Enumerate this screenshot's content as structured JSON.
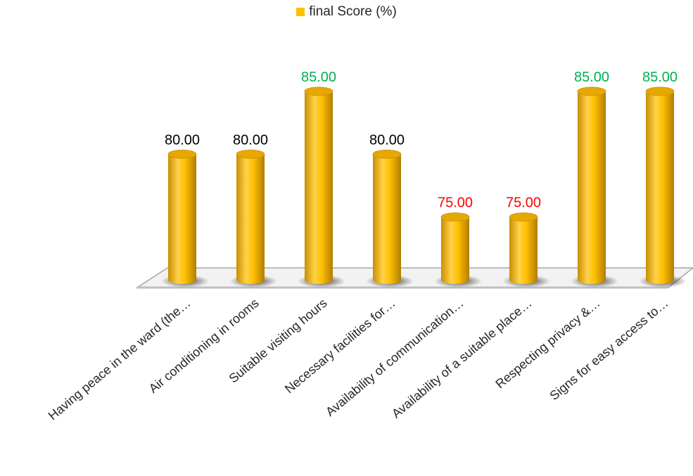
{
  "chart_data": {
    "type": "bar",
    "style": "3d-cylinder",
    "categories": [
      "Having peace in the ward (the…",
      "Air conditioning in rooms",
      "Suitable visiting hours",
      "Necessary facilities for…",
      "Availability of communication…",
      "Availability of a suitable place…",
      "Respecting privacy &…",
      "Signs for easy access to…"
    ],
    "series": [
      {
        "name": "final Score (%)",
        "values": [
          80.0,
          80.0,
          85.0,
          80.0,
          75.0,
          75.0,
          85.0,
          85.0
        ]
      }
    ],
    "data_labels": [
      "80.00",
      "80.00",
      "85.00",
      "80.00",
      "75.00",
      "75.00",
      "85.00",
      "85.00"
    ],
    "data_label_colors": [
      "#000000",
      "#000000",
      "#00B050",
      "#000000",
      "#FF0000",
      "#FF0000",
      "#00B050",
      "#00B050"
    ],
    "ylim": [
      70,
      86
    ],
    "grid": false,
    "legend_position": "top"
  },
  "colors": {
    "bar_fill": "#FFC000",
    "bar_shade": "#E6A800",
    "floor_fill": "#F2F2F2",
    "floor_stroke": "#A6A6A6",
    "shadow": "#404040"
  }
}
